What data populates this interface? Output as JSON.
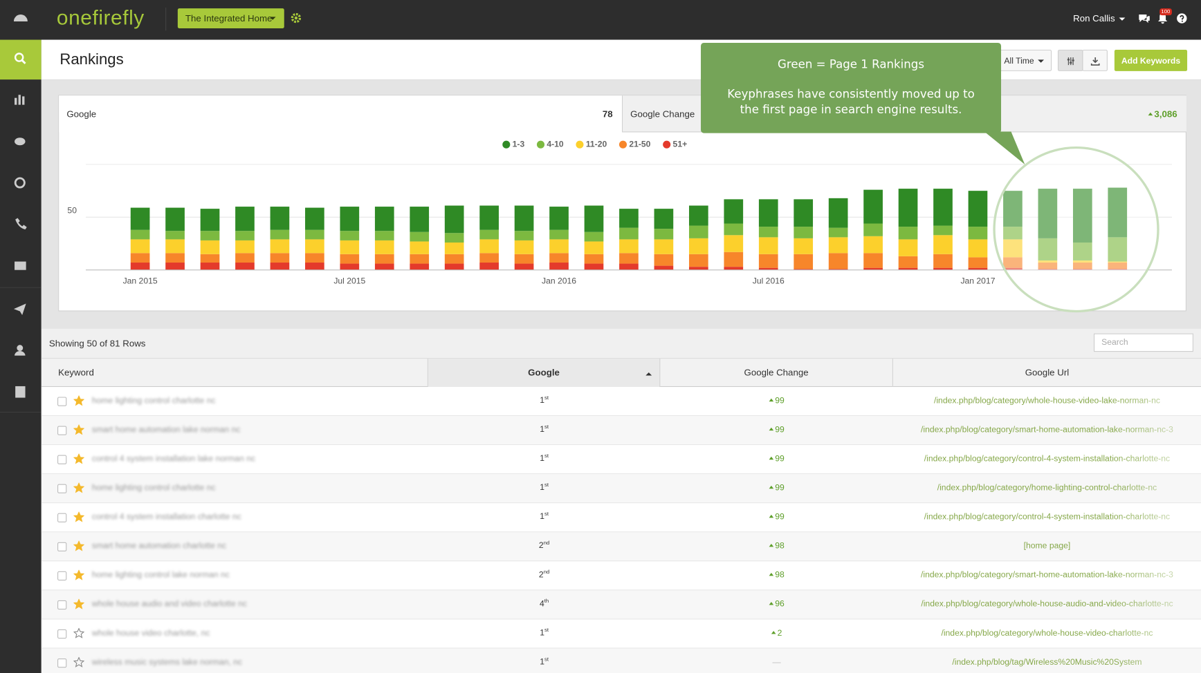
{
  "header": {
    "logo": "onefirefly",
    "site": "The Integrated Home",
    "user": "Ron Callis",
    "notifications": "100"
  },
  "page": {
    "title": "Rankings",
    "range": "All Time",
    "add_button": "Add Keywords"
  },
  "tabs": [
    {
      "label": "Google",
      "value": "78"
    },
    {
      "label": "Google Change",
      "value": "3,086"
    }
  ],
  "callout": {
    "title": "Green = Page 1 Rankings",
    "text": "Keyphrases have consistently moved up to the first page in search engine results."
  },
  "chart_data": {
    "type": "stacked-bar",
    "categories": [
      "Jan 2015",
      null,
      null,
      null,
      null,
      null,
      "Jul 2015",
      null,
      null,
      null,
      null,
      null,
      "Jan 2016",
      null,
      null,
      null,
      null,
      null,
      "Jul 2016",
      null,
      null,
      null,
      null,
      null,
      "Jan 2017",
      null,
      null,
      null,
      null
    ],
    "series": [
      {
        "name": "1-3",
        "color": "#2f8a25",
        "values": [
          21,
          22,
          21,
          23,
          22,
          21,
          23,
          23,
          24,
          26,
          23,
          24,
          22,
          25,
          18,
          19,
          19,
          23,
          26,
          26,
          28,
          32,
          36,
          35,
          34,
          34,
          47,
          51,
          47
        ]
      },
      {
        "name": "4-10",
        "color": "#7cb940",
        "values": [
          9,
          8,
          9,
          9,
          9,
          9,
          9,
          9,
          9,
          9,
          9,
          9,
          9,
          9,
          11,
          10,
          12,
          11,
          10,
          11,
          9,
          12,
          12,
          9,
          12,
          12,
          21,
          17,
          23
        ]
      },
      {
        "name": "11-20",
        "color": "#fcd02c",
        "values": [
          13,
          13,
          13,
          12,
          13,
          13,
          13,
          13,
          12,
          11,
          13,
          13,
          13,
          12,
          13,
          14,
          15,
          16,
          16,
          15,
          15,
          16,
          16,
          18,
          17,
          17,
          2,
          2,
          1
        ]
      },
      {
        "name": "21-50",
        "color": "#f7862a",
        "values": [
          9,
          9,
          8,
          9,
          9,
          9,
          9,
          9,
          9,
          9,
          9,
          9,
          9,
          9,
          10,
          11,
          12,
          14,
          13,
          14,
          15,
          14,
          11,
          13,
          10,
          10,
          6,
          6,
          6
        ]
      },
      {
        "name": "51+",
        "color": "#e43a2b",
        "values": [
          7,
          7,
          7,
          7,
          7,
          7,
          6,
          6,
          6,
          6,
          7,
          6,
          7,
          6,
          6,
          4,
          3,
          3,
          2,
          1,
          1,
          2,
          2,
          2,
          2,
          2,
          1,
          1,
          1
        ]
      }
    ],
    "ylim": [
      0,
      100
    ],
    "yticks": [
      50
    ],
    "grid": true,
    "legend": "top"
  },
  "table": {
    "summary": "Showing 50 of 81 Rows",
    "search_placeholder": "Search",
    "columns": [
      "Keyword",
      "Google",
      "Google Change",
      "Google Url"
    ],
    "rows": [
      {
        "keyword": "home lighting control charlotte nc",
        "rank": "1",
        "suffix": "st",
        "change": "99",
        "up": true,
        "url": "/index.php/blog/category/whole-house-video-lake-norman-nc",
        "starred": true
      },
      {
        "keyword": "smart home automation lake norman nc",
        "rank": "1",
        "suffix": "st",
        "change": "99",
        "up": true,
        "url": "/index.php/blog/category/smart-home-automation-lake-norman-nc-3",
        "starred": true
      },
      {
        "keyword": "control 4 system installation lake norman nc",
        "rank": "1",
        "suffix": "st",
        "change": "99",
        "up": true,
        "url": "/index.php/blog/category/control-4-system-installation-charlotte-nc",
        "starred": true
      },
      {
        "keyword": "home lighting control charlotte nc",
        "rank": "1",
        "suffix": "st",
        "change": "99",
        "up": true,
        "url": "/index.php/blog/category/home-lighting-control-charlotte-nc",
        "starred": true
      },
      {
        "keyword": "control 4 system installation charlotte nc",
        "rank": "1",
        "suffix": "st",
        "change": "99",
        "up": true,
        "url": "/index.php/blog/category/control-4-system-installation-charlotte-nc",
        "starred": true
      },
      {
        "keyword": "smart home automation charlotte nc",
        "rank": "2",
        "suffix": "nd",
        "change": "98",
        "up": true,
        "url": "[home page]",
        "starred": true
      },
      {
        "keyword": "home lighting control lake norman nc",
        "rank": "2",
        "suffix": "nd",
        "change": "98",
        "up": true,
        "url": "/index.php/blog/category/smart-home-automation-lake-norman-nc-3",
        "starred": true
      },
      {
        "keyword": "whole house audio and video charlotte nc",
        "rank": "4",
        "suffix": "th",
        "change": "96",
        "up": true,
        "url": "/index.php/blog/category/whole-house-audio-and-video-charlotte-nc",
        "starred": true
      },
      {
        "keyword": "whole house video charlotte, nc",
        "rank": "1",
        "suffix": "st",
        "change": "2",
        "up": true,
        "url": "/index.php/blog/category/whole-house-video-charlotte-nc",
        "starred": false
      },
      {
        "keyword": "wireless music systems lake norman, nc",
        "rank": "1",
        "suffix": "st",
        "change": "—",
        "up": false,
        "url": "/index.php/blog/tag/Wireless%20Music%20System",
        "starred": false
      }
    ]
  }
}
